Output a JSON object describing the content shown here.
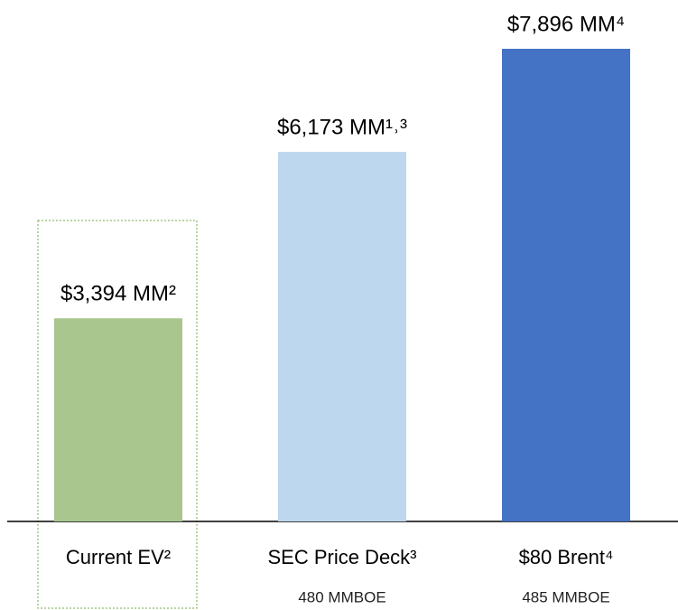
{
  "chart_data": {
    "type": "bar",
    "categories": [
      "Current EV²",
      "SEC Price Deck³",
      "$80 Brent⁴"
    ],
    "sublabels": [
      null,
      "480 MMBOE",
      "485 MMBOE"
    ],
    "values": [
      3394,
      6173,
      7896
    ],
    "value_labels": [
      "$3,394 MM²",
      "$6,173 MM¹˒³",
      "$7,896 MM⁴"
    ],
    "colors": [
      "#a9c68e",
      "#bdd7ee",
      "#4472c4"
    ]
  }
}
